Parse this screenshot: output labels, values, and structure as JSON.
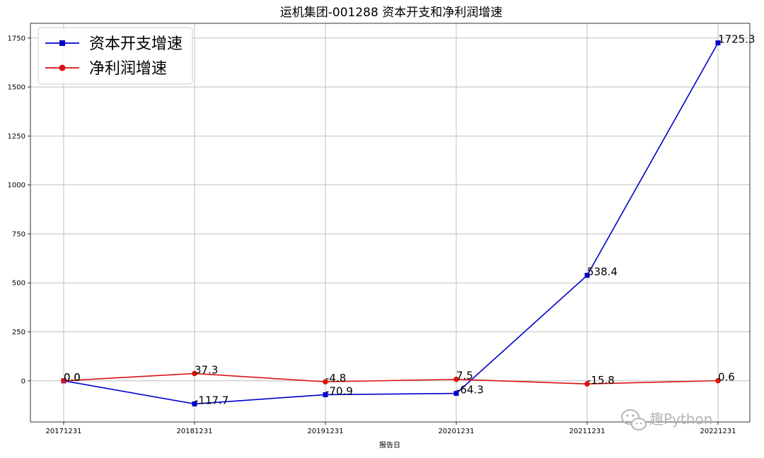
{
  "chart_data": {
    "type": "line",
    "title": "运机集团-001288 资本开支和净利润增速",
    "xlabel": "报告日",
    "ylabel": "",
    "categories": [
      "20171231",
      "20181231",
      "20191231",
      "20201231",
      "20211231",
      "20221231"
    ],
    "ylim": [
      -210,
      1825
    ],
    "yticks": [
      0,
      250,
      500,
      750,
      1000,
      1250,
      1500,
      1750
    ],
    "grid": true,
    "legend_position": "top-left",
    "series": [
      {
        "name": "资本开支增速",
        "color": "#0000cc",
        "marker": "square",
        "values": [
          0.0,
          -117.7,
          -70.9,
          -64.3,
          538.4,
          1725.3
        ],
        "labels": [
          "0.0",
          "-117.7",
          "-70.9",
          "-64.3",
          "538.4",
          "1725.3"
        ]
      },
      {
        "name": "净利润增速",
        "color": "#dd1111",
        "marker": "circle",
        "values": [
          0.0,
          37.3,
          -4.8,
          7.5,
          -15.8,
          0.6
        ],
        "labels": [
          "0.0",
          "37.3",
          "-4.8",
          "7.5",
          "-15.8",
          "0.6"
        ]
      }
    ]
  },
  "watermark": {
    "text": "趣Python",
    "icon": "wechat-icon"
  }
}
